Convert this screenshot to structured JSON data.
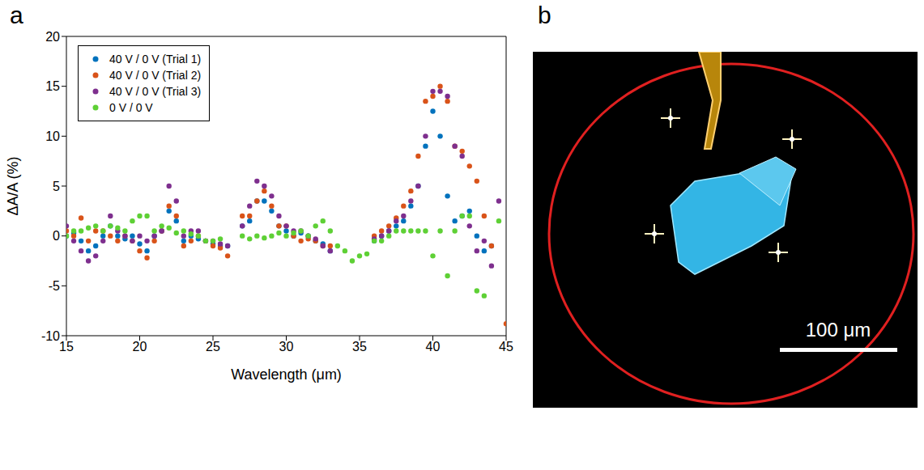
{
  "chart_data": {
    "type": "scatter",
    "panel_label": "a",
    "x_label": "Wavelength (μm)",
    "y_label": "ΔA/A (%)",
    "xlim": [
      15,
      45
    ],
    "xticks": [
      15,
      20,
      25,
      30,
      35,
      40,
      45
    ],
    "ylim": [
      -10,
      20
    ],
    "yticks": [
      -10,
      -5,
      0,
      5,
      10,
      15,
      20
    ],
    "grid": false,
    "legend": "upper left",
    "marker": "circle",
    "x": [
      15,
      15.5,
      16,
      16.5,
      17,
      17.5,
      18,
      18.5,
      19,
      19.5,
      20,
      20.5,
      21,
      21.5,
      22,
      22.5,
      23,
      23.5,
      24,
      24.5,
      25,
      25.5,
      26,
      26.5,
      27,
      27.5,
      28,
      28.5,
      29,
      29.5,
      30,
      30.5,
      31,
      31.5,
      32,
      32.5,
      33,
      33.5,
      34,
      34.5,
      35,
      35.5,
      36,
      36.5,
      37,
      37.5,
      38,
      38.5,
      39,
      39.5,
      40,
      40.5,
      41,
      41.5,
      42,
      42.5,
      43,
      43.5,
      44,
      44.5,
      45
    ],
    "series": [
      {
        "name": "40 V / 0 V (Trial 1)",
        "color": "#0072bd",
        "values": [
          0,
          0.3,
          -0.5,
          -1.5,
          -1,
          0,
          1,
          0,
          -0.3,
          0,
          -0.8,
          -1.5,
          0,
          0.5,
          2.5,
          1.5,
          -0.5,
          0,
          -0.3,
          -0.5,
          -0.8,
          -1,
          -1,
          null,
          1,
          1.5,
          3.5,
          3.5,
          2.5,
          1,
          0.5,
          0,
          0.3,
          0,
          -0.5,
          -0.8,
          -1.5,
          null,
          null,
          null,
          null,
          null,
          -0.5,
          0,
          0.5,
          1,
          1.5,
          3,
          5,
          9,
          12.5,
          10,
          4,
          1.5,
          2,
          2.5,
          0,
          -1.5,
          -1,
          null,
          null
        ]
      },
      {
        "name": "40 V / 0 V (Trial 2)",
        "color": "#d95319",
        "values": [
          0.5,
          0,
          1.8,
          -0.5,
          0.5,
          0.5,
          0,
          -0.5,
          0,
          -0.5,
          -1.5,
          -2.2,
          -0.5,
          0.5,
          3,
          2,
          -1,
          -0.5,
          0,
          -0.5,
          -1,
          -1.2,
          -2,
          null,
          2,
          2,
          3.5,
          4.5,
          3,
          1,
          1,
          0,
          -0.5,
          -0.3,
          -0.5,
          -1,
          -1,
          null,
          null,
          null,
          null,
          null,
          0,
          0.5,
          1,
          1.8,
          3,
          4.5,
          8,
          13.5,
          14,
          15,
          13.5,
          9,
          8.5,
          7,
          5.5,
          2,
          -1,
          null,
          -8.8
        ]
      },
      {
        "name": "40 V / 0 V (Trial 3)",
        "color": "#7e2f8e",
        "values": [
          1,
          -0.5,
          -1.5,
          -2.5,
          -2,
          -0.5,
          2,
          0.5,
          0,
          -0.5,
          0,
          -0.5,
          0,
          0.5,
          5,
          3.5,
          0,
          0.5,
          0.5,
          -0.5,
          -0.5,
          -0.8,
          -1,
          null,
          1,
          3,
          5.5,
          5,
          4,
          2,
          1,
          0.5,
          0.5,
          0,
          -0.3,
          -1,
          -1.5,
          null,
          null,
          null,
          null,
          null,
          -0.3,
          0,
          0.5,
          1.5,
          2,
          3.5,
          5,
          10,
          14.5,
          14.5,
          14,
          9,
          8,
          1,
          -1.5,
          -0.5,
          -3,
          3.5,
          null
        ]
      },
      {
        "name": "0 V / 0 V",
        "color": "#5ed035",
        "values": [
          0,
          0.5,
          0.5,
          0.8,
          1,
          0.5,
          1,
          0.8,
          0.5,
          1.5,
          2,
          2,
          0.5,
          1,
          0.8,
          0.3,
          0.5,
          0.2,
          0,
          -0.5,
          -0.5,
          -0.3,
          null,
          null,
          0,
          -0.3,
          0,
          -0.2,
          0,
          0.3,
          0,
          0.3,
          0.5,
          0,
          1,
          1.5,
          0.5,
          -1,
          -1.5,
          -2.5,
          -2,
          -1.8,
          -0.5,
          -0.5,
          0,
          0.5,
          0.5,
          0.5,
          0.5,
          0.5,
          -2,
          0.5,
          -4,
          0.5,
          2,
          2,
          -5.5,
          -6,
          null,
          1.5,
          null
        ]
      }
    ]
  },
  "image": {
    "panel_label": "b",
    "scale_bar": "100 μm"
  }
}
